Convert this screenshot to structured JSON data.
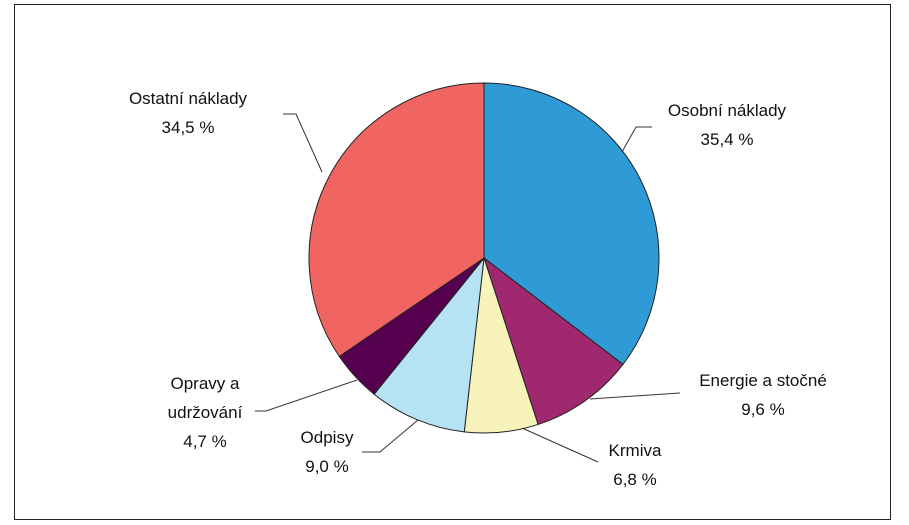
{
  "chart_data": {
    "type": "pie",
    "categories": [
      "Osobní náklady",
      "Energie a stočné",
      "Krmiva",
      "Odpisy",
      "Opravy a udržování",
      "Ostatní náklady"
    ],
    "values": [
      35.4,
      9.6,
      6.8,
      9.0,
      4.7,
      34.5
    ],
    "value_labels": [
      "35,4 %",
      "9,6 %",
      "6,8 %",
      "9,0 %",
      "4,7 %",
      "34,5 %"
    ],
    "colors": [
      "#2e9bd6",
      "#a0286e",
      "#f8f2bb",
      "#b5e2f4",
      "#560050",
      "#f06462"
    ]
  }
}
